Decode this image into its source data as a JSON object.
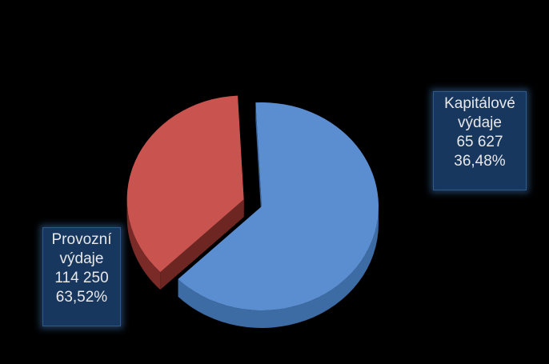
{
  "chart_data": {
    "type": "pie",
    "style": "3d-exploded",
    "slices": [
      {
        "name": "Provozní výdaje",
        "name_line1": "Provozní",
        "name_line2": "výdaje",
        "value": 114250,
        "value_label": "114 250",
        "percent_label": "63,52%",
        "color": "#5B8ED0",
        "side_color": "#3D6BA3",
        "exploded": false
      },
      {
        "name": "Kapitálové výdaje",
        "name_line1": "Kapitálové",
        "name_line2": "výdaje",
        "value": 65627,
        "value_label": "65 627",
        "percent_label": "36,48%",
        "color": "#C9534F",
        "side_color": "#7A2A27",
        "exploded": true
      }
    ],
    "title": "",
    "legend": "none"
  }
}
